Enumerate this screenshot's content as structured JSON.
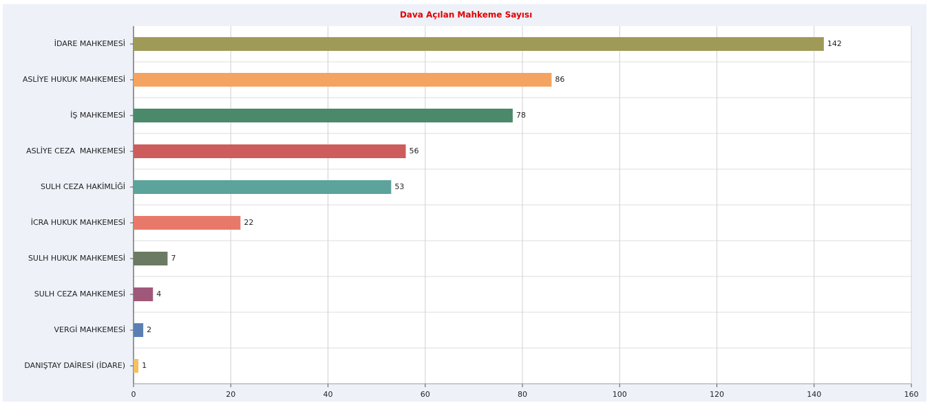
{
  "chart_data": {
    "type": "hbar",
    "title": "Dava Açılan Mahkeme Sayısı",
    "categories": [
      "İDARE MAHKEMESİ",
      "ASLİYE HUKUK MAHKEMESİ",
      "İŞ MAHKEMESİ",
      "ASLİYE CEZA  MAHKEMESİ",
      "SULH CEZA HAKİMLİĞİ",
      "İCRA HUKUK MAHKEMESİ",
      "SULH HUKUK MAHKEMESİ",
      "SULH CEZA MAHKEMESİ",
      "VERGİ MAHKEMESİ",
      "DANIŞTAY DAİRESİ (İDARE)"
    ],
    "values": [
      142,
      86,
      78,
      56,
      53,
      22,
      7,
      4,
      2,
      1
    ],
    "colors": [
      "#a09a58",
      "#f4a460",
      "#4a8a6a",
      "#cd5c5c",
      "#5ba39b",
      "#e8796a",
      "#6b7a63",
      "#a0587a",
      "#5b7fb5",
      "#f5c060"
    ],
    "xlim": [
      0,
      160
    ],
    "xticks": [
      0,
      20,
      40,
      60,
      80,
      100,
      120,
      140,
      160
    ],
    "grid": true
  }
}
